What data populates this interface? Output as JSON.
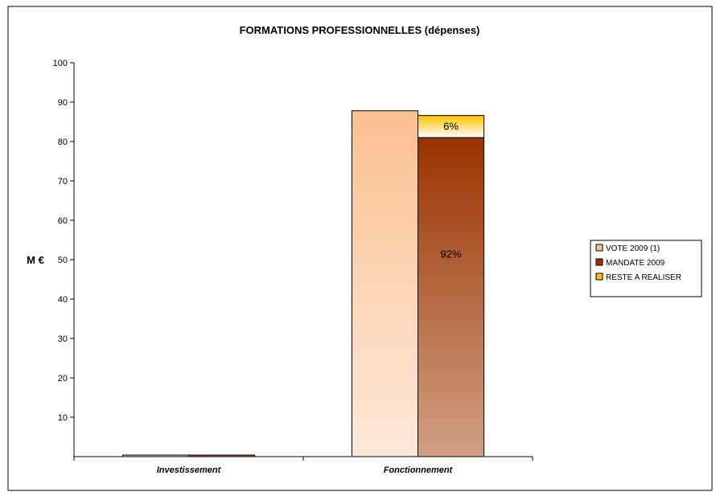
{
  "chart_data": {
    "type": "bar",
    "title": "FORMATIONS PROFESSIONNELLES (dépenses)",
    "ylabel": "M €",
    "ylim": [
      0,
      100
    ],
    "yticks": [
      10,
      20,
      30,
      40,
      50,
      60,
      70,
      80,
      90,
      100
    ],
    "categories": [
      "Investissement",
      "Fonctionnement"
    ],
    "series": [
      {
        "name": "VOTE 2009 (1)",
        "values": [
          0.4,
          87.8
        ],
        "color": "#FAC08F",
        "stack": "vote"
      },
      {
        "name": "MANDATE 2009",
        "values": [
          0.4,
          81.0
        ],
        "color": "#993300",
        "stack": "real"
      },
      {
        "name": "RESTE A REALISER",
        "values": [
          0,
          5.6
        ],
        "color": "#FFC000",
        "stack": "real"
      }
    ],
    "data_labels": [
      {
        "series": "MANDATE 2009",
        "category": "Fonctionnement",
        "text": "92%"
      },
      {
        "series": "RESTE A REALISER",
        "category": "Fonctionnement",
        "text": "6%"
      }
    ],
    "legend_position": "right",
    "grid": false
  }
}
